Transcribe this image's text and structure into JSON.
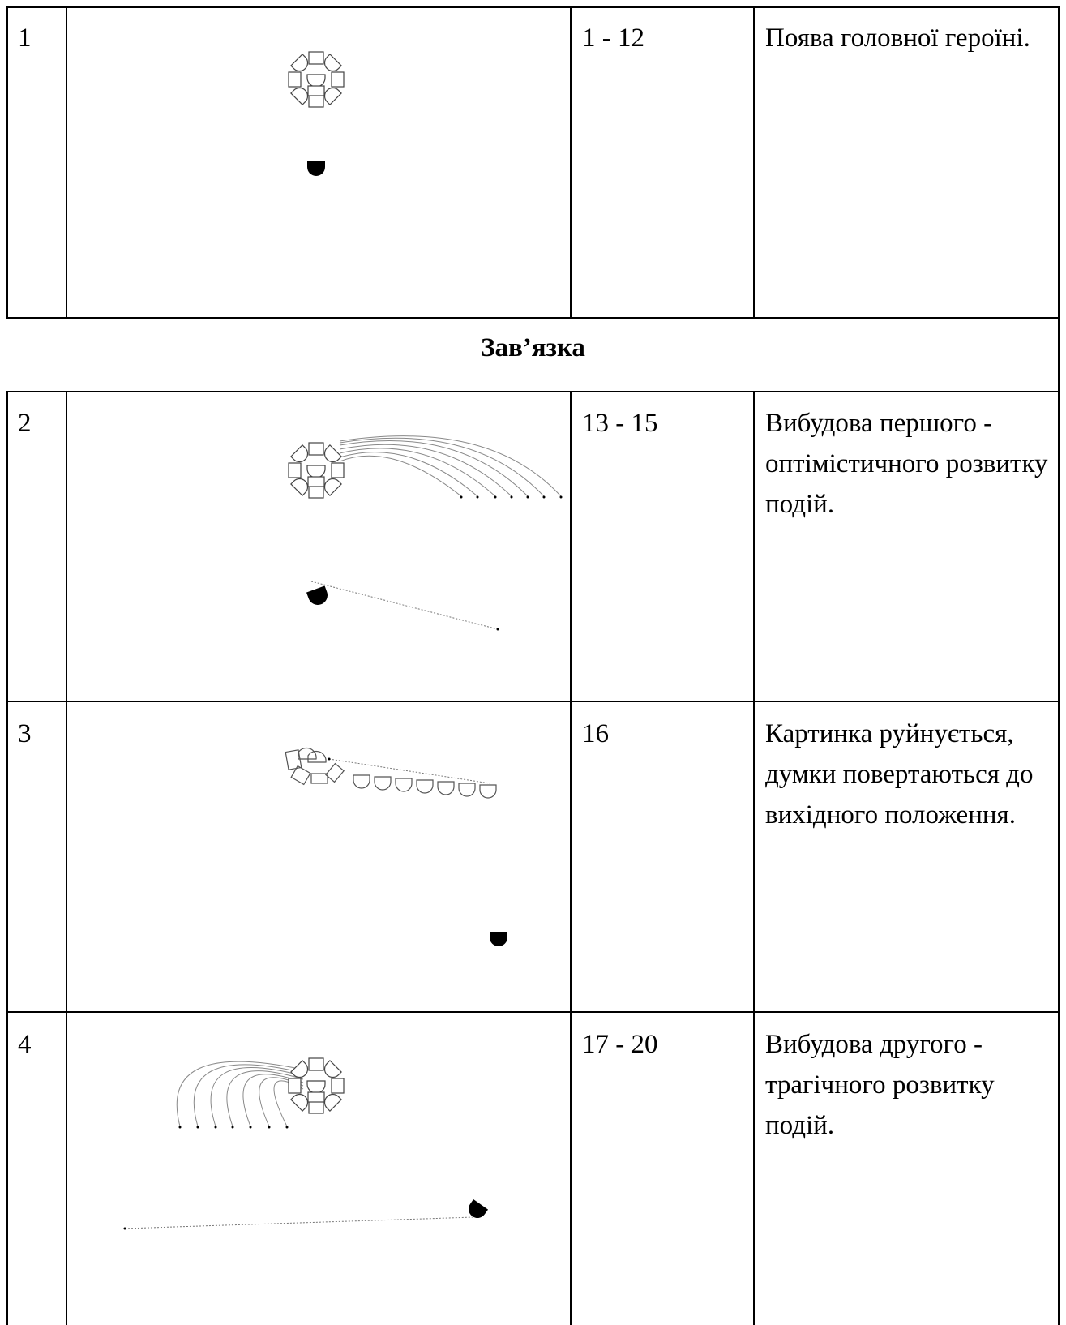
{
  "rows": [
    {
      "number": "1",
      "frames": "1 - 12",
      "description": "Поява головної героїні."
    },
    {
      "number": "2",
      "frames": "13 - 15",
      "description": "Вибудова першого - оптімістичного розвитку подій."
    },
    {
      "number": "3",
      "frames": "16",
      "description": "Картинка руйнується, думки повертаються до вихідного положення."
    },
    {
      "number": "4",
      "frames": "17 - 20",
      "description": "Вибудова другого - трагічного розвитку подій."
    }
  ],
  "section_heading": "Зав’язка",
  "icons": {
    "flower": "flower-cluster-icon",
    "figure": "half-circle-figure-icon"
  }
}
